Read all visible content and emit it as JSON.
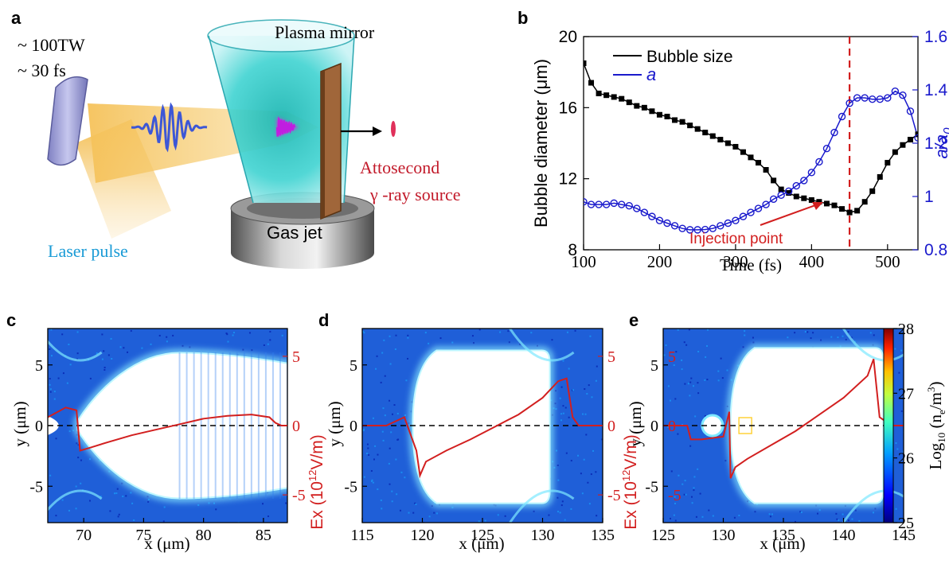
{
  "figure": {
    "panels": {
      "a": {
        "letter": "a",
        "laser_power": "~ 100TW",
        "laser_duration": "~ 30 fs",
        "plasma_mirror_label": "Plasma mirror",
        "source_label_line1": "Attosecond",
        "source_label_line2": "γ -ray source",
        "laser_pulse_label": "Laser pulse",
        "gas_jet_label": "Gas jet"
      },
      "b": {
        "letter": "b",
        "legend": [
          "Bubble size",
          "a"
        ],
        "annotation": "Injection point"
      },
      "c": {
        "letter": "c",
        "xticks": [
          "70",
          "75",
          "80",
          "85"
        ],
        "yticks": [
          "5",
          "0",
          "-5"
        ],
        "ex_ticks": [
          "5",
          "0",
          "-5"
        ]
      },
      "d": {
        "letter": "d",
        "xticks": [
          "115",
          "120",
          "125",
          "130",
          "135"
        ],
        "yticks": [
          "5",
          "0",
          "-5"
        ],
        "ex_ticks": [
          "5",
          "0",
          "-5"
        ]
      },
      "e": {
        "letter": "e",
        "xticks": [
          "125",
          "130",
          "135",
          "140",
          "145"
        ],
        "yticks": [
          "5",
          "0",
          "-5"
        ],
        "ex_ticks": [
          "5",
          "0",
          "-5"
        ],
        "colorbar_ticks": [
          "28",
          "27",
          "26",
          "25"
        ]
      }
    },
    "labels": {
      "x_um": "x (μm)",
      "y_um": "y (μm)",
      "ex_label": "Ex (10",
      "ex_exp": "12",
      "ex_unit": "V/m)",
      "log_label_prefix": "Log",
      "log_sub": "10",
      "log_label_mid": " (n",
      "log_sub_e": "e",
      "log_label_unit": "/m",
      "log_exp": "3",
      "log_label_close": ")"
    }
  },
  "chart_data": [
    {
      "type": "line",
      "panel": "b",
      "xlabel": "Time (fs)",
      "ylabel": "Bubble diameter (μm)",
      "ylabel_right": "a/a0",
      "xlim": [
        100,
        540
      ],
      "ylim": [
        8,
        20
      ],
      "ylim_right": [
        0.8,
        1.6
      ],
      "xticks": [
        100,
        200,
        300,
        400,
        500
      ],
      "yticks": [
        8,
        12,
        16,
        20
      ],
      "yticks_right": [
        0.8,
        1,
        1.2,
        1.4,
        1.6
      ],
      "legend_position": "top-right",
      "annotation": {
        "text": "Injection point",
        "x": 450
      },
      "vline_x": 450,
      "series": [
        {
          "name": "Bubble size",
          "axis": "left",
          "color": "#000000",
          "marker": "square",
          "x": [
            100,
            110,
            120,
            130,
            140,
            150,
            160,
            170,
            180,
            190,
            200,
            210,
            220,
            230,
            240,
            250,
            260,
            270,
            280,
            290,
            300,
            310,
            320,
            330,
            340,
            350,
            360,
            370,
            380,
            390,
            400,
            410,
            420,
            430,
            440,
            450,
            460,
            470,
            480,
            490,
            500,
            510,
            520,
            530,
            540
          ],
          "y": [
            18.5,
            17.4,
            16.8,
            16.7,
            16.6,
            16.5,
            16.3,
            16.1,
            16.0,
            15.8,
            15.6,
            15.5,
            15.3,
            15.2,
            15.0,
            14.8,
            14.6,
            14.4,
            14.2,
            14.0,
            13.8,
            13.5,
            13.2,
            12.9,
            12.5,
            11.9,
            11.4,
            11.2,
            11.0,
            10.9,
            10.8,
            10.7,
            10.6,
            10.5,
            10.3,
            10.1,
            10.2,
            10.7,
            11.3,
            12.1,
            12.9,
            13.5,
            13.9,
            14.2,
            14.5
          ]
        },
        {
          "name": "a",
          "axis": "right",
          "color": "#1a1acc",
          "marker": "circle",
          "x": [
            100,
            110,
            120,
            130,
            140,
            150,
            160,
            170,
            180,
            190,
            200,
            210,
            220,
            230,
            240,
            250,
            260,
            270,
            280,
            290,
            300,
            310,
            320,
            330,
            340,
            350,
            360,
            370,
            380,
            390,
            400,
            410,
            420,
            430,
            440,
            450,
            460,
            470,
            480,
            490,
            500,
            510,
            520,
            530,
            540
          ],
          "y": [
            0.98,
            0.97,
            0.97,
            0.97,
            0.975,
            0.97,
            0.965,
            0.955,
            0.94,
            0.925,
            0.91,
            0.9,
            0.89,
            0.88,
            0.875,
            0.875,
            0.876,
            0.88,
            0.89,
            0.9,
            0.91,
            0.925,
            0.94,
            0.955,
            0.97,
            0.99,
            1.005,
            1.02,
            1.04,
            1.06,
            1.09,
            1.13,
            1.18,
            1.24,
            1.3,
            1.35,
            1.37,
            1.37,
            1.365,
            1.365,
            1.37,
            1.395,
            1.38,
            1.32,
            1.22
          ]
        }
      ]
    },
    {
      "type": "heatmap",
      "panel": "c",
      "xlabel": "x (μm)",
      "ylabel": "y (μm)",
      "xlim": [
        67,
        87
      ],
      "ylim": [
        -8,
        8
      ],
      "ex_range": [
        -7,
        7
      ],
      "bubble": {
        "back_x": 69.5,
        "waist_halfwidth": 0.4,
        "max_halfwidth": 6.0,
        "max_at_x": 78,
        "front_x": 87
      },
      "ex_line": {
        "x": [
          67,
          68.5,
          69.4,
          69.7,
          70.5,
          72,
          74,
          76,
          78,
          80,
          82,
          84,
          85.5,
          86,
          86.5,
          87
        ],
        "y": [
          0.6,
          1.3,
          1.1,
          -1.8,
          -1.6,
          -1.2,
          -0.7,
          -0.3,
          0.1,
          0.5,
          0.7,
          0.8,
          0.6,
          0.2,
          0.0,
          0.0
        ]
      }
    },
    {
      "type": "heatmap",
      "panel": "d",
      "xlabel": "x (μm)",
      "ylabel": "y (μm)",
      "xlim": [
        115,
        135
      ],
      "ylim": [
        -8,
        8
      ],
      "ex_range": [
        -7,
        7
      ],
      "bubble": {
        "back_x": 119.2,
        "front_x": 130.6,
        "top_y": 6.2,
        "bottom_y": -6.4
      },
      "ex_line": {
        "x": [
          115,
          117,
          118.5,
          119.5,
          119.8,
          120.3,
          122,
          124,
          126,
          128,
          130,
          131.3,
          132,
          132.5,
          133,
          135
        ],
        "y": [
          0.0,
          0.0,
          0.6,
          -1.8,
          -3.6,
          -2.6,
          -1.8,
          -1.0,
          -0.1,
          0.8,
          2.0,
          3.2,
          3.4,
          0.6,
          0.0,
          0.0
        ]
      }
    },
    {
      "type": "heatmap",
      "panel": "e",
      "xlabel": "x (μm)",
      "ylabel": "y (μm)",
      "xlim": [
        125,
        145
      ],
      "ylim": [
        -8,
        8
      ],
      "ex_range": [
        -7,
        7
      ],
      "colorbar": {
        "label": "Log10 (ne/m3)",
        "range": [
          25,
          28
        ],
        "ticks": [
          25,
          26,
          27,
          28
        ]
      },
      "bubble": {
        "back_x": 130.6,
        "front_x": 143.3,
        "top_y": 6.4,
        "bottom_y": -6.4
      },
      "ex_line": {
        "x": [
          125,
          127,
          127.3,
          128.2,
          130,
          130.5,
          130.6,
          131,
          132,
          134,
          136,
          138,
          140,
          142,
          142.5,
          143,
          144,
          145
        ],
        "y": [
          0.0,
          0.0,
          -1.0,
          -1.0,
          -0.8,
          1.0,
          -3.8,
          -3.0,
          -2.4,
          -1.4,
          -0.4,
          0.8,
          2.0,
          3.6,
          4.8,
          0.6,
          0.0,
          0.0
        ]
      }
    }
  ]
}
